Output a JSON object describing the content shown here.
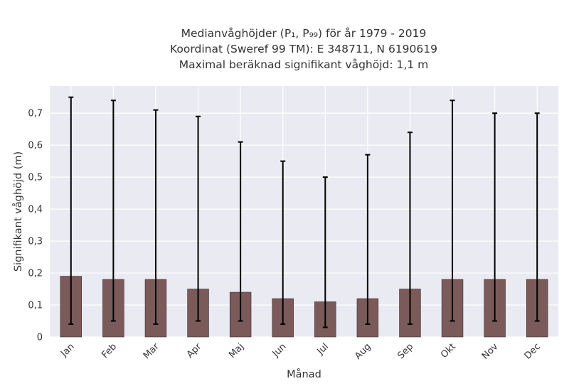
{
  "chart_data": {
    "type": "bar",
    "title_lines": [
      "Medianvåghöjder (P₁, P₉₉) för år 1979 - 2019",
      "Koordinat (Sweref 99 TM): E 348711, N 6190619",
      "Maximal beräknad signifikant våghöjd: 1,1 m"
    ],
    "xlabel": "Månad",
    "ylabel": "Signifikant våghöjd (m)",
    "categories": [
      "Jan",
      "Feb",
      "Mar",
      "Apr",
      "Maj",
      "Jun",
      "Jul",
      "Aug",
      "Sep",
      "Okt",
      "Nov",
      "Dec"
    ],
    "values": [
      0.19,
      0.18,
      0.18,
      0.15,
      0.14,
      0.12,
      0.11,
      0.12,
      0.15,
      0.18,
      0.18,
      0.18
    ],
    "error_low": [
      0.04,
      0.05,
      0.04,
      0.05,
      0.05,
      0.04,
      0.03,
      0.04,
      0.04,
      0.05,
      0.05,
      0.05
    ],
    "error_high": [
      0.75,
      0.74,
      0.71,
      0.69,
      0.61,
      0.55,
      0.5,
      0.57,
      0.64,
      0.74,
      0.7,
      0.7
    ],
    "ylim": [
      0,
      0.785
    ],
    "yticks": [
      0,
      0.1,
      0.2,
      0.3,
      0.4,
      0.5,
      0.6,
      0.7
    ],
    "ytick_labels": [
      "0",
      "0,1",
      "0,2",
      "0,3",
      "0,4",
      "0,5",
      "0,6",
      "0,7"
    ],
    "grid": true,
    "bar_color": "#7b5a5a",
    "errorbar_color": "#000000",
    "background_color": "#eaeaf2"
  }
}
